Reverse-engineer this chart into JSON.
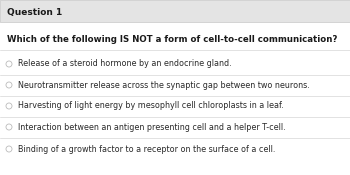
{
  "title": "Question 1",
  "question": "Which of the following IS NOT a form of cell-to-cell communication?",
  "options": [
    "Release of a steroid hormone by an endocrine gland.",
    "Neurotransmitter release across the synaptic gap between two neurons.",
    "Harvesting of light energy by mesophyll cell chloroplasts in a leaf.",
    "Interaction between an antigen presenting cell and a helper T-cell.",
    "Binding of a growth factor to a receptor on the surface of a cell."
  ],
  "bg_color": "#f2f2f2",
  "header_bg": "#e4e4e4",
  "white_bg": "#ffffff",
  "text_color": "#1a1a1a",
  "option_text_color": "#2a2a2a",
  "title_fontsize": 6.5,
  "question_fontsize": 6.2,
  "option_fontsize": 5.8,
  "radio_color": "#bbbbbb",
  "divider_color": "#cccccc",
  "border_color": "#cccccc"
}
